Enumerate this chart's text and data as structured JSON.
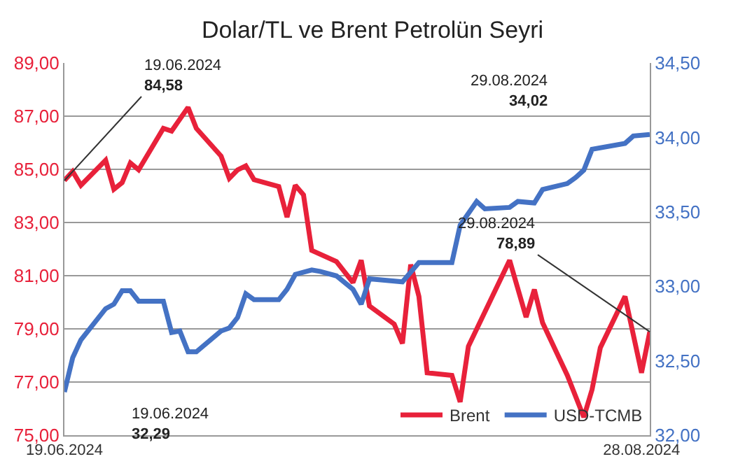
{
  "chart_data": {
    "type": "line",
    "title": "Dolar/TL ve Brent Petrolün Seyri",
    "x": [
      "2024-06-19",
      "2024-06-20",
      "2024-06-21",
      "2024-06-24",
      "2024-06-25",
      "2024-06-26",
      "2024-06-27",
      "2024-06-28",
      "2024-07-01",
      "2024-07-02",
      "2024-07-04",
      "2024-07-05",
      "2024-07-08",
      "2024-07-09",
      "2024-07-10",
      "2024-07-11",
      "2024-07-12",
      "2024-07-15",
      "2024-07-16",
      "2024-07-17",
      "2024-07-18",
      "2024-07-19",
      "2024-07-22",
      "2024-07-24",
      "2024-07-25",
      "2024-07-26",
      "2024-07-29",
      "2024-07-30",
      "2024-07-31",
      "2024-08-01",
      "2024-08-02",
      "2024-08-05",
      "2024-08-06",
      "2024-08-07",
      "2024-08-12",
      "2024-08-14",
      "2024-08-15",
      "2024-08-16",
      "2024-08-19",
      "2024-08-21",
      "2024-08-22",
      "2024-08-23",
      "2024-08-26",
      "2024-08-28",
      "2024-08-29"
    ],
    "series": [
      {
        "name": "Brent",
        "color": "#e8213a",
        "values": [
          84.58,
          84.92,
          84.4,
          85.34,
          84.25,
          84.5,
          85.24,
          84.98,
          86.54,
          86.44,
          87.33,
          86.54,
          85.5,
          84.66,
          84.98,
          85.13,
          84.61,
          84.35,
          83.2,
          84.4,
          84.04,
          81.95,
          81.53,
          80.74,
          81.58,
          79.86,
          79.18,
          78.45,
          81.42,
          80.22,
          77.35,
          77.25,
          76.25,
          78.34,
          81.58,
          79.44,
          80.48,
          79.23,
          77.25,
          75.68,
          76.72,
          78.29,
          80.22,
          77.35,
          78.89
        ]
      },
      {
        "name": "USD-TCMB",
        "color": "#4472c4",
        "axis": "y2",
        "x": [
          "2024-06-19",
          "2024-06-20",
          "2024-06-21",
          "2024-06-24",
          "2024-06-25",
          "2024-06-26",
          "2024-06-27",
          "2024-06-28",
          "2024-07-01",
          "2024-07-02",
          "2024-07-03",
          "2024-07-04",
          "2024-07-05",
          "2024-07-08",
          "2024-07-09",
          "2024-07-10",
          "2024-07-11",
          "2024-07-12",
          "2024-07-15",
          "2024-07-16",
          "2024-07-17",
          "2024-07-19",
          "2024-07-20",
          "2024-07-22",
          "2024-07-24",
          "2024-07-25",
          "2024-07-26",
          "2024-07-30",
          "2024-08-01",
          "2024-08-05",
          "2024-08-06",
          "2024-08-08",
          "2024-08-09",
          "2024-08-12",
          "2024-08-13",
          "2024-08-15",
          "2024-08-16",
          "2024-08-19",
          "2024-08-20",
          "2024-08-21",
          "2024-08-22",
          "2024-08-26",
          "2024-08-27",
          "2024-08-29"
        ],
        "values": [
          32.29,
          32.52,
          32.64,
          32.85,
          32.88,
          32.97,
          32.97,
          32.9,
          32.9,
          32.69,
          32.7,
          32.56,
          32.56,
          32.7,
          32.72,
          32.79,
          32.95,
          32.91,
          32.91,
          32.98,
          33.08,
          33.11,
          33.1,
          33.07,
          32.98,
          32.88,
          33.05,
          33.03,
          33.16,
          33.16,
          33.41,
          33.57,
          33.52,
          33.53,
          33.57,
          33.56,
          33.65,
          33.69,
          33.73,
          33.78,
          33.92,
          33.96,
          34.01,
          34.02
        ]
      }
    ],
    "xlim": [
      "2024-06-19",
      "2024-08-29"
    ],
    "xticks": [
      {
        "value": "2024-06-19",
        "label": "19.06.2024"
      },
      {
        "value": "2024-08-28",
        "label": "28.08.2024"
      }
    ],
    "ylim": [
      75,
      89
    ],
    "yticks": [
      {
        "value": 75,
        "label": "75,00"
      },
      {
        "value": 77,
        "label": "77,00"
      },
      {
        "value": 79,
        "label": "79,00"
      },
      {
        "value": 81,
        "label": "81,00"
      },
      {
        "value": 83,
        "label": "83,00"
      },
      {
        "value": 85,
        "label": "85,00"
      },
      {
        "value": 87,
        "label": "87,00"
      },
      {
        "value": 89,
        "label": "89,00"
      }
    ],
    "y2lim": [
      32,
      34.5
    ],
    "y2ticks": [
      {
        "value": 32,
        "label": "32,00"
      },
      {
        "value": 32.5,
        "label": "32,50"
      },
      {
        "value": 33,
        "label": "33,00"
      },
      {
        "value": 33.5,
        "label": "33,50"
      },
      {
        "value": 34,
        "label": "34,00"
      },
      {
        "value": 34.5,
        "label": "34,50"
      }
    ],
    "annotations": [
      {
        "text": "19.06.2024\n84,58",
        "x": "2024-06-19",
        "y": 84.58
      },
      "29.08.2024\n34,02",
      {
        "text": "29.08.2024\n78,89",
        "x": "2024-08-29",
        "y": 78.89
      },
      "19.06.2024\n32,29"
    ],
    "grid": "y",
    "legend": "bottom right",
    "line_style": "solid",
    "marker": "none"
  }
}
